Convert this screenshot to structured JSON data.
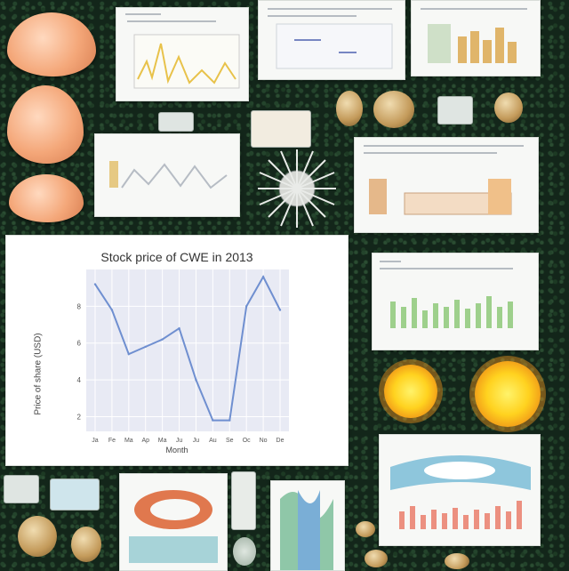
{
  "chart_data": {
    "type": "line",
    "title": "Stock price of CWE in 2013",
    "xlabel": "Month",
    "ylabel": "Price of share (USD)",
    "categories": [
      "Jan",
      "Feb",
      "Mar",
      "Apr",
      "May",
      "Jun",
      "Jul",
      "Aug",
      "Sep",
      "Oct",
      "Nov",
      "Dec"
    ],
    "values": [
      9.2,
      7.8,
      5.4,
      5.8,
      6.2,
      6.8,
      4.0,
      1.8,
      1.8,
      8.0,
      9.6,
      7.8
    ],
    "ylim": [
      1.2,
      10
    ],
    "yticks": [
      "8",
      "6",
      "4",
      "2"
    ],
    "xtick_labels": [
      "Ja",
      "Fe",
      "Ma",
      "Ap",
      "Ma",
      "Ju",
      "Ju",
      "Au",
      "Se",
      "Oc",
      "No",
      "De"
    ],
    "grid": true,
    "line_color": "#6f8fd0"
  },
  "colors": {
    "accent_orange": "#f19a18",
    "shell_peach": "#f4a779",
    "background_green": "#13261a"
  }
}
